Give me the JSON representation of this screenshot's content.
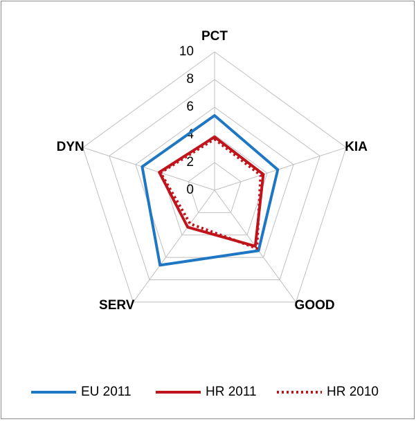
{
  "chart_data": {
    "type": "radar",
    "categories": [
      "PCT",
      "KIA",
      "GOOD",
      "SERV",
      "DYN"
    ],
    "series": [
      {
        "name": "EU 2011",
        "color": "#1f77c4",
        "dash": "solid",
        "values": [
          5.4,
          4.8,
          5.4,
          6.7,
          5.5
        ]
      },
      {
        "name": "HR 2011",
        "color": "#c0141c",
        "dash": "solid",
        "values": [
          3.85,
          3.7,
          5.0,
          3.3,
          4.2
        ]
      },
      {
        "name": "HR 2010",
        "color": "#c0141c",
        "dash": "dotted",
        "values": [
          3.7,
          3.5,
          5.2,
          3.0,
          4.1
        ]
      }
    ],
    "rlim": [
      0,
      10
    ],
    "rticks": [
      0,
      2,
      4,
      6,
      8,
      10
    ],
    "grid": true,
    "legend": "bottom"
  }
}
